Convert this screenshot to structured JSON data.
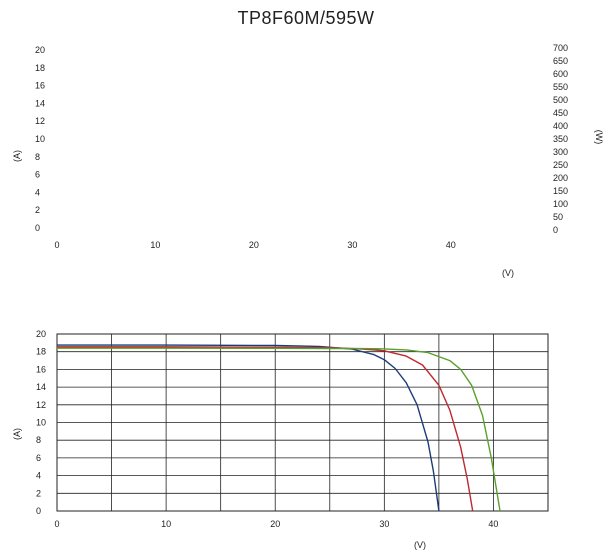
{
  "title": "TP8F60M/595W",
  "chart_data": [
    {
      "type": "line",
      "title": "",
      "xlabel": "(V)",
      "ylabel": "(A)",
      "y2label": "(W)",
      "xlim": [
        0,
        45
      ],
      "ylim": [
        0,
        20
      ],
      "y2lim": [
        0,
        700
      ],
      "x_ticks": [
        "0",
        "10",
        "20",
        "30",
        "40"
      ],
      "y_ticks": [
        "0",
        "2",
        "4",
        "6",
        "8",
        "10",
        "12",
        "14",
        "16",
        "18",
        "20"
      ],
      "y2_ticks": [
        "0",
        "50",
        "100",
        "150",
        "200",
        "250",
        "300",
        "350",
        "400",
        "450",
        "500",
        "550",
        "600",
        "650",
        "700"
      ],
      "grid": false,
      "series": []
    },
    {
      "type": "line",
      "title": "",
      "xlabel": "(V)",
      "ylabel": "(A)",
      "xlim": [
        0,
        45
      ],
      "ylim": [
        0,
        20
      ],
      "x_ticks": [
        "0",
        "10",
        "20",
        "30",
        "40"
      ],
      "y_ticks": [
        "0",
        "2",
        "4",
        "6",
        "8",
        "10",
        "12",
        "14",
        "16",
        "18",
        "20"
      ],
      "grid": true,
      "series": [
        {
          "color": "#1f3b7a",
          "x": [
            0,
            10,
            20,
            24,
            27,
            29,
            30,
            31,
            32,
            33,
            34,
            34.5,
            35
          ],
          "y": [
            18.75,
            18.75,
            18.7,
            18.6,
            18.3,
            17.7,
            17.1,
            16.1,
            14.5,
            12.0,
            7.8,
            4.5,
            0
          ]
        },
        {
          "color": "#c0282d",
          "x": [
            0,
            10,
            20,
            25,
            28,
            30,
            32,
            33.5,
            35,
            36,
            37,
            37.6,
            38.1
          ],
          "y": [
            18.55,
            18.55,
            18.5,
            18.45,
            18.3,
            18.1,
            17.5,
            16.5,
            14.2,
            11.4,
            7.2,
            3.6,
            0
          ]
        },
        {
          "color": "#5aa02c",
          "x": [
            0,
            10,
            20,
            25,
            28,
            30,
            32,
            34,
            36,
            37,
            38,
            39,
            39.8,
            40.6
          ],
          "y": [
            18.4,
            18.4,
            18.38,
            18.36,
            18.35,
            18.32,
            18.2,
            17.9,
            17.0,
            16.0,
            14.2,
            10.8,
            6.0,
            0
          ]
        }
      ]
    }
  ]
}
